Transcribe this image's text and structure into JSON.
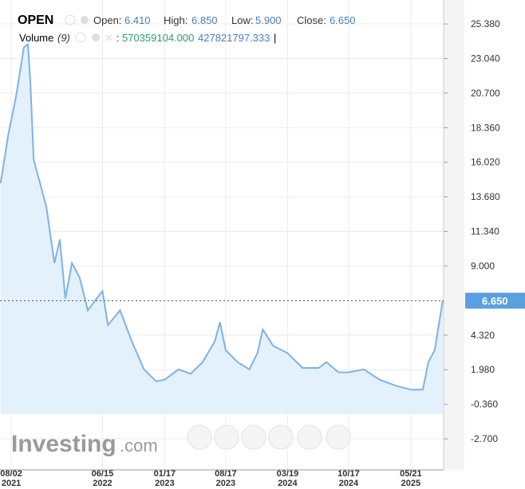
{
  "chart_data": {
    "type": "area",
    "title": "OPEN",
    "ohlc": {
      "open_label": "Open:",
      "open": {
        "value": 6.41,
        "label": "6.410"
      },
      "high_label": "High:",
      "high": {
        "value": 6.85,
        "label": "6.850"
      },
      "low_label": "Low:",
      "low": {
        "value": 5.9,
        "label": "5.900"
      },
      "close_label": "Close:",
      "close": {
        "value": 6.65,
        "label": "6.650"
      }
    },
    "volume_legend": {
      "label": "Volume",
      "period": "(9)",
      "separator": ":",
      "value1": "570359104.000",
      "value2": "427821797.333",
      "cursor": "|"
    },
    "watermark": {
      "brand": "Investing",
      "suffix": ".com"
    },
    "color": "#7fb2e5",
    "fill": "#e3f1fd",
    "x": [
      "2021-06-26",
      "2021-07-22",
      "2021-08-19",
      "2021-09-15",
      "2021-09-29",
      "2021-10-07",
      "2021-10-19",
      "2021-11-10",
      "2021-12-02",
      "2021-12-30",
      "2022-01-18",
      "2022-02-06",
      "2022-03-01",
      "2022-03-28",
      "2022-04-25",
      "2022-06-15",
      "2022-07-04",
      "2022-08-15",
      "2022-09-25",
      "2022-11-06",
      "2022-12-18",
      "2023-01-17",
      "2023-03-06",
      "2023-04-17",
      "2023-05-29",
      "2023-07-10",
      "2023-07-28",
      "2023-08-17",
      "2023-09-27",
      "2023-11-07",
      "2023-12-05",
      "2023-12-24",
      "2024-01-29",
      "2024-03-19",
      "2024-05-10",
      "2024-07-05",
      "2024-08-01",
      "2024-09-12",
      "2024-10-17",
      "2024-12-09",
      "2025-02-02",
      "2025-03-29",
      "2025-05-21",
      "2025-07-02",
      "2025-07-21",
      "2025-08-12",
      "2025-08-26",
      "2025-09-09"
    ],
    "values": [
      14.6,
      17.8,
      20.5,
      23.8,
      24.0,
      21.6,
      16.2,
      14.6,
      13.0,
      9.2,
      10.8,
      6.8,
      9.2,
      8.2,
      6.0,
      7.3,
      5.0,
      6.0,
      3.9,
      2.0,
      1.2,
      1.3,
      2.0,
      1.7,
      2.5,
      3.9,
      5.2,
      3.3,
      2.5,
      2.0,
      3.1,
      4.7,
      3.6,
      3.1,
      2.1,
      2.1,
      2.5,
      1.8,
      1.8,
      2.0,
      1.3,
      0.9,
      0.63,
      0.63,
      2.5,
      3.3,
      5.0,
      6.65
    ],
    "xlim": [
      "2021-06-24",
      "2025-09-12"
    ],
    "xticks": [
      {
        "value": "2021-08-02",
        "label": "08/02",
        "sublabel": "2021"
      },
      {
        "value": "2022-06-15",
        "label": "06/15",
        "sublabel": "2022"
      },
      {
        "value": "2023-01-17",
        "label": "01/17",
        "sublabel": "2023"
      },
      {
        "value": "2023-08-17",
        "label": "08/17",
        "sublabel": "2023"
      },
      {
        "value": "2024-03-19",
        "label": "03/19",
        "sublabel": "2024"
      },
      {
        "value": "2024-10-17",
        "label": "10/17",
        "sublabel": "2024"
      },
      {
        "value": "2025-05-21",
        "label": "05/21",
        "sublabel": "2025"
      }
    ],
    "ylim": [
      -4.8,
      27.0
    ],
    "yticks": [
      {
        "value": 25.38,
        "label": "25.380"
      },
      {
        "value": 23.04,
        "label": "23.040"
      },
      {
        "value": 20.7,
        "label": "20.700"
      },
      {
        "value": 18.36,
        "label": "18.360"
      },
      {
        "value": 16.02,
        "label": "16.020"
      },
      {
        "value": 13.68,
        "label": "13.680"
      },
      {
        "value": 11.34,
        "label": "11.340"
      },
      {
        "value": 9.0,
        "label": "9.000"
      },
      {
        "value": 4.32,
        "label": "4.320"
      },
      {
        "value": 1.98,
        "label": "1.980"
      },
      {
        "value": -0.36,
        "label": "-0.360"
      },
      {
        "value": -2.7,
        "label": "-2.700"
      }
    ],
    "grid": true
  }
}
